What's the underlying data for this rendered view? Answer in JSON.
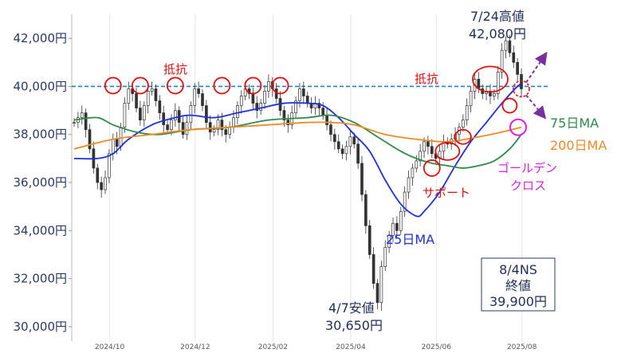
{
  "chart_data": {
    "type": "candlestick-line",
    "title": "",
    "y_ticks": [
      {
        "value": 42000,
        "label": "42,000円"
      },
      {
        "value": 40000,
        "label": "40,000円"
      },
      {
        "value": 38000,
        "label": "38,000円"
      },
      {
        "value": 36000,
        "label": "36,000円"
      },
      {
        "value": 34000,
        "label": "34,000円"
      },
      {
        "value": 32000,
        "label": "32,000円"
      },
      {
        "value": 30000,
        "label": "30,000円"
      }
    ],
    "ylim": [
      29400,
      43000
    ],
    "x_ticks": [
      "2024/10",
      "2024/12",
      "2025/02",
      "2025/04",
      "2025/06",
      "2025/08"
    ],
    "resistance_level": 40000,
    "price": [
      [
        0,
        38500
      ],
      [
        1,
        38700
      ],
      [
        2,
        38900
      ],
      [
        3,
        38200
      ],
      [
        4,
        37400
      ],
      [
        5,
        36600
      ],
      [
        6,
        36000
      ],
      [
        7,
        35700
      ],
      [
        8,
        36200
      ],
      [
        9,
        37200
      ],
      [
        10,
        37800
      ],
      [
        11,
        37500
      ],
      [
        12,
        38300
      ],
      [
        13,
        39300
      ],
      [
        14,
        39900
      ],
      [
        15,
        39700
      ],
      [
        16,
        39100
      ],
      [
        17,
        38600
      ],
      [
        18,
        39200
      ],
      [
        19,
        39800
      ],
      [
        20,
        39900
      ],
      [
        21,
        39400
      ],
      [
        22,
        38900
      ],
      [
        23,
        38400
      ],
      [
        24,
        38200
      ],
      [
        25,
        38600
      ],
      [
        26,
        39000
      ],
      [
        27,
        38500
      ],
      [
        28,
        38000
      ],
      [
        29,
        38500
      ],
      [
        30,
        39200
      ],
      [
        31,
        39900
      ],
      [
        32,
        39700
      ],
      [
        33,
        39200
      ],
      [
        34,
        38500
      ],
      [
        35,
        38100
      ],
      [
        36,
        38200
      ],
      [
        37,
        38600
      ],
      [
        38,
        38200
      ],
      [
        39,
        38000
      ],
      [
        40,
        38300
      ],
      [
        41,
        38700
      ],
      [
        42,
        39200
      ],
      [
        43,
        39600
      ],
      [
        44,
        39900
      ],
      [
        45,
        39700
      ],
      [
        46,
        39300
      ],
      [
        47,
        39000
      ],
      [
        48,
        39300
      ],
      [
        49,
        39800
      ],
      [
        50,
        40200
      ],
      [
        51,
        39900
      ],
      [
        52,
        39500
      ],
      [
        53,
        39000
      ],
      [
        54,
        38600
      ],
      [
        55,
        38400
      ],
      [
        56,
        38900
      ],
      [
        57,
        39400
      ],
      [
        58,
        39900
      ],
      [
        59,
        39600
      ],
      [
        60,
        39300
      ],
      [
        61,
        39100
      ],
      [
        62,
        39300
      ],
      [
        63,
        39100
      ],
      [
        64,
        38800
      ],
      [
        65,
        38400
      ],
      [
        66,
        38000
      ],
      [
        67,
        37700
      ],
      [
        68,
        37400
      ],
      [
        69,
        37200
      ],
      [
        70,
        37500
      ],
      [
        71,
        37900
      ],
      [
        72,
        37600
      ],
      [
        73,
        36800
      ],
      [
        74,
        35500
      ],
      [
        75,
        34200
      ],
      [
        76,
        33000
      ],
      [
        77,
        31800
      ],
      [
        78,
        31000
      ],
      [
        79,
        32500
      ],
      [
        80,
        33300
      ],
      [
        81,
        33800
      ],
      [
        82,
        34300
      ],
      [
        83,
        34000
      ],
      [
        84,
        34800
      ],
      [
        85,
        35600
      ],
      [
        86,
        36200
      ],
      [
        87,
        36600
      ],
      [
        88,
        36900
      ],
      [
        89,
        37300
      ],
      [
        90,
        37700
      ],
      [
        91,
        37500
      ],
      [
        92,
        37200
      ],
      [
        93,
        37000
      ],
      [
        94,
        37300
      ],
      [
        95,
        37700
      ],
      [
        96,
        37600
      ],
      [
        97,
        37800
      ],
      [
        98,
        38000
      ],
      [
        99,
        38300
      ],
      [
        100,
        38600
      ],
      [
        101,
        39200
      ],
      [
        102,
        39800
      ],
      [
        103,
        40300
      ],
      [
        104,
        39900
      ],
      [
        105,
        39700
      ],
      [
        106,
        39800
      ],
      [
        107,
        39600
      ],
      [
        108,
        39700
      ],
      [
        109,
        40600
      ],
      [
        110,
        41500
      ],
      [
        111,
        41900
      ],
      [
        112,
        41400
      ],
      [
        113,
        41000
      ],
      [
        114,
        40500
      ],
      [
        115,
        39900
      ]
    ],
    "series": [
      {
        "name": "25日MA",
        "color": "#1c2fe0",
        "values": [
          [
            0,
            37000
          ],
          [
            6,
            37000
          ],
          [
            10,
            37200
          ],
          [
            14,
            37800
          ],
          [
            20,
            38400
          ],
          [
            26,
            38700
          ],
          [
            30,
            38800
          ],
          [
            36,
            38700
          ],
          [
            42,
            38900
          ],
          [
            48,
            39100
          ],
          [
            54,
            39300
          ],
          [
            60,
            39300
          ],
          [
            64,
            39200
          ],
          [
            68,
            38700
          ],
          [
            72,
            38000
          ],
          [
            76,
            37300
          ],
          [
            80,
            36100
          ],
          [
            84,
            35100
          ],
          [
            88,
            34600
          ],
          [
            90,
            34800
          ],
          [
            94,
            35600
          ],
          [
            98,
            36700
          ],
          [
            102,
            37700
          ],
          [
            106,
            38500
          ],
          [
            110,
            39300
          ],
          [
            114,
            40000
          ],
          [
            115,
            40100
          ]
        ]
      },
      {
        "name": "75日MA",
        "color": "#2e8b4c",
        "values": [
          [
            0,
            38600
          ],
          [
            6,
            38700
          ],
          [
            10,
            38400
          ],
          [
            16,
            38100
          ],
          [
            22,
            38000
          ],
          [
            30,
            38200
          ],
          [
            40,
            38300
          ],
          [
            50,
            38600
          ],
          [
            60,
            38700
          ],
          [
            66,
            38800
          ],
          [
            72,
            38500
          ],
          [
            78,
            37900
          ],
          [
            84,
            37300
          ],
          [
            88,
            37000
          ],
          [
            92,
            36800
          ],
          [
            96,
            36700
          ],
          [
            100,
            36600
          ],
          [
            104,
            36700
          ],
          [
            108,
            36900
          ],
          [
            112,
            37400
          ],
          [
            115,
            38000
          ]
        ]
      },
      {
        "name": "200日MA",
        "color": "#f08a24",
        "values": [
          [
            0,
            37400
          ],
          [
            10,
            37800
          ],
          [
            20,
            38000
          ],
          [
            30,
            38200
          ],
          [
            40,
            38300
          ],
          [
            50,
            38400
          ],
          [
            60,
            38500
          ],
          [
            66,
            38500
          ],
          [
            72,
            38400
          ],
          [
            80,
            38000
          ],
          [
            88,
            37800
          ],
          [
            96,
            37700
          ],
          [
            104,
            37900
          ],
          [
            110,
            38100
          ],
          [
            115,
            38300
          ]
        ]
      }
    ],
    "annotations": {
      "resistance_left": "抵抗",
      "resistance_right": "抵抗",
      "high_line1": "7/24高値",
      "high_line2": "42,080円",
      "low_line1": "4/7安値",
      "low_line2": "30,650円",
      "support": "サポート",
      "ma25": "25日MA",
      "ma75": "75日MA",
      "ma200": "200日MA",
      "golden_line1": "ゴールデン",
      "golden_line2": "クロス",
      "close_line1": "8/4NS",
      "close_line2": "終値",
      "close_line3": "39,900円"
    },
    "resistance_touches": [
      10,
      17,
      26,
      38,
      46,
      53
    ],
    "support_touches": [
      92,
      96,
      100,
      106
    ],
    "colors": {
      "price": "#333333",
      "resistance_line": "#2a80c8",
      "circle": "#e01010",
      "cross": "#e020e0",
      "arrow": "#7a2fa0"
    }
  }
}
